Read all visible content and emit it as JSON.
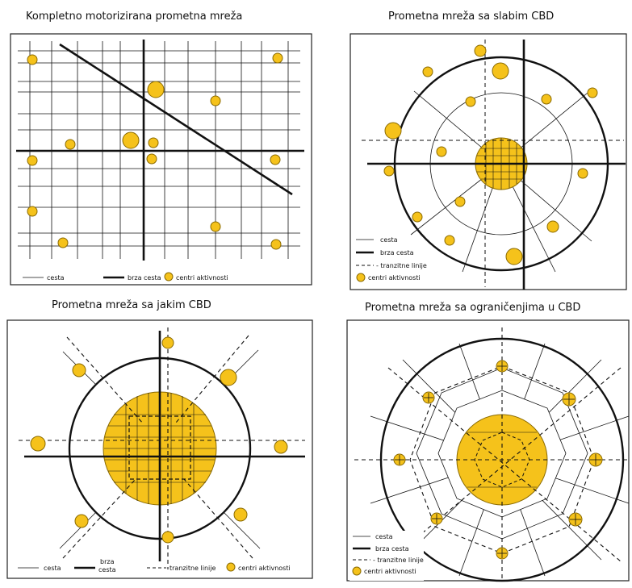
{
  "titles": {
    "p1": "Kompletno motorizirana prometna mreža",
    "p2": "Prometna mreža sa slabim CBD",
    "p3": "Prometna mreža sa jakim CBD",
    "p4": "Prometna mreža sa ograničenjima u CBD"
  },
  "legend": {
    "road": "cesta",
    "expressway": "brza cesta",
    "expressway_line1": "brza",
    "expressway_line2": "cesta",
    "transit": "- tranzitne linije",
    "transit_plain": "tranzitne linije",
    "centers": "centri aktivnosti"
  },
  "colors": {
    "center_fill": "#f5c21b",
    "center_stroke": "#8a6a00",
    "line": "#111111",
    "frame": "#222222"
  }
}
